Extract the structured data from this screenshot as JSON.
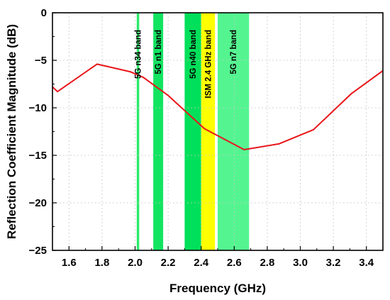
{
  "chart_data": {
    "type": "line",
    "xlabel": "Frequency (GHz)",
    "ylabel": "Reflection Coefficient Magnitude (dB)",
    "xlim": [
      1.5,
      3.5
    ],
    "ylim": [
      -25,
      0
    ],
    "x_ticks": [
      1.6,
      1.8,
      2.0,
      2.2,
      2.4,
      2.6,
      2.8,
      3.0,
      3.2,
      3.4
    ],
    "y_ticks": [
      0,
      -5,
      -10,
      -15,
      -20,
      -25
    ],
    "x_tick_labels": [
      "1.6",
      "1.8",
      "2.0",
      "2.2",
      "2.4",
      "2.6",
      "2.8",
      "3.0",
      "3.2",
      "3.4"
    ],
    "y_tick_labels": [
      "0",
      "−5",
      "−10",
      "−15",
      "−20",
      "−25"
    ],
    "grid": true,
    "series": [
      {
        "color": "#e8161b",
        "x": [
          1.5,
          1.53,
          1.77,
          1.97,
          2.05,
          2.2,
          2.42,
          2.66,
          2.87,
          3.08,
          3.31,
          3.5
        ],
        "y": [
          -7.8,
          -8.3,
          -5.4,
          -6.2,
          -6.8,
          -8.7,
          -12.2,
          -14.4,
          -13.8,
          -12.3,
          -8.5,
          -6.1
        ]
      }
    ],
    "bands": [
      {
        "label": "5G n34 band",
        "start": 2.01,
        "end": 2.025,
        "color": "#2eea6b"
      },
      {
        "label": "5G n1 band",
        "start": 2.11,
        "end": 2.17,
        "color": "#12e462"
      },
      {
        "label": "5G n40 band",
        "start": 2.3,
        "end": 2.4,
        "color": "#00e05a"
      },
      {
        "label": "ISM 2.4 GHz band",
        "start": 2.4,
        "end": 2.4835,
        "color": "#ffff00"
      },
      {
        "label": "5G n7 band",
        "start": 2.5,
        "end": 2.69,
        "color": "#54f590"
      }
    ]
  }
}
